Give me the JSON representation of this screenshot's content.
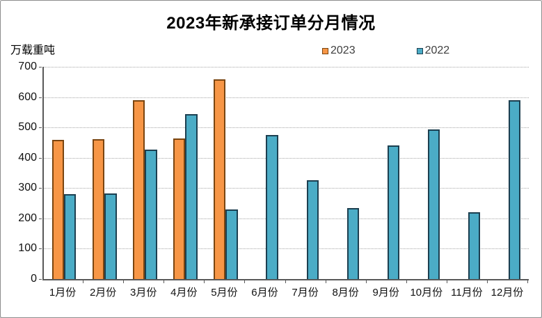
{
  "window": {
    "background": "#ffffff",
    "border_color": "#8c8c8c"
  },
  "chart_data": {
    "type": "bar",
    "title": "2023年新承接订单分月情况",
    "ylabel": "万载重吨",
    "xlabel": "",
    "categories": [
      "1月份",
      "2月份",
      "3月份",
      "4月份",
      "5月份",
      "6月份",
      "7月份",
      "8月份",
      "9月份",
      "10月份",
      "11月份",
      "12月份"
    ],
    "series": [
      {
        "name": "2023",
        "color": "#F79646",
        "border_color": "#7A4510",
        "values": [
          459,
          462,
          591,
          464,
          658,
          null,
          null,
          null,
          null,
          null,
          null,
          null
        ]
      },
      {
        "name": "2022",
        "color": "#4BACC6",
        "border_color": "#1C3F50",
        "values": [
          280,
          282,
          426,
          545,
          230,
          476,
          326,
          233,
          440,
          493,
          220,
          590
        ]
      }
    ],
    "ylim": [
      0,
      700
    ],
    "yticks": [
      0,
      100,
      200,
      300,
      400,
      500,
      600,
      700
    ],
    "grid": "horizontal-dotted",
    "grid_color": "#a6a6a6",
    "axis_color": "#595959",
    "legend_position": "top-center"
  }
}
